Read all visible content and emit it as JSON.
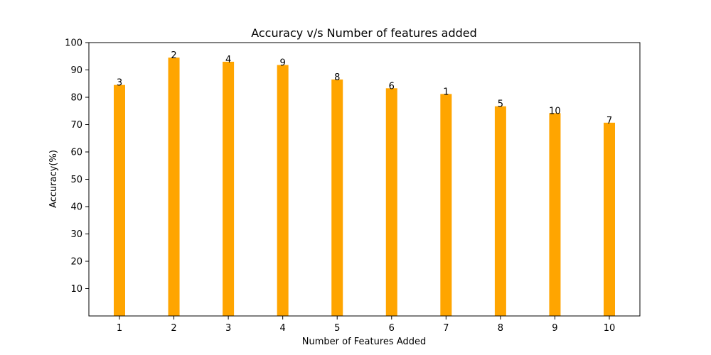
{
  "chart_data": {
    "type": "bar",
    "title": "Accuracy v/s Number of features added",
    "xlabel": "Number of Features Added",
    "ylabel": "Accuracy(%)",
    "categories": [
      "1",
      "2",
      "3",
      "4",
      "5",
      "6",
      "7",
      "8",
      "9",
      "10"
    ],
    "values": [
      84.5,
      94.5,
      93.0,
      91.8,
      86.5,
      83.3,
      81.2,
      76.7,
      74.2,
      70.7
    ],
    "bar_labels": [
      "3",
      "2",
      "4",
      "9",
      "8",
      "6",
      "1",
      "5",
      "10",
      "7"
    ],
    "ylim": [
      0,
      100
    ],
    "yticks": [
      10,
      20,
      30,
      40,
      50,
      60,
      70,
      80,
      90,
      100
    ],
    "bar_color": "#FFA500",
    "grid": false
  }
}
